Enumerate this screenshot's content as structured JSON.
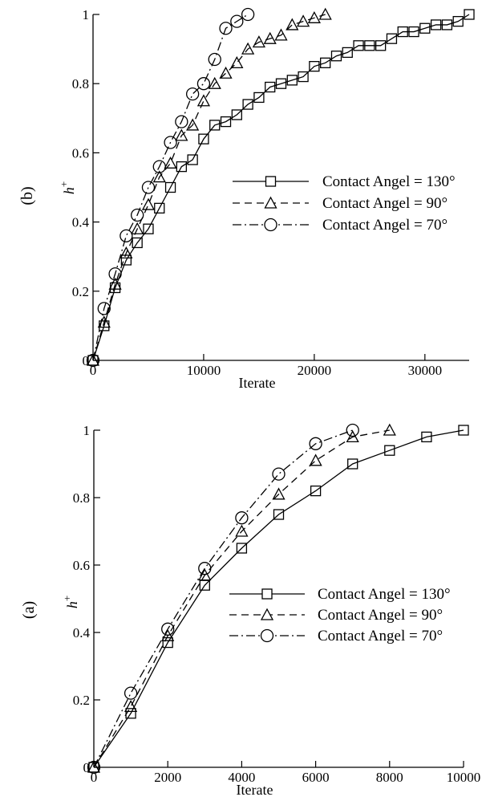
{
  "chart_data": [
    {
      "type": "line",
      "panel_label": "(b)",
      "xlabel": "Iterate",
      "ylabel_main": "h",
      "ylabel_sup": "+",
      "xlim": [
        0,
        34000
      ],
      "ylim": [
        0,
        1
      ],
      "xticks": [
        0,
        10000,
        20000,
        30000
      ],
      "xtick_labels": [
        "0",
        "10000",
        "20000",
        "30000"
      ],
      "yticks": [
        0,
        0.2,
        0.4,
        0.6,
        0.8,
        1
      ],
      "ytick_labels": [
        "0",
        "0.2",
        "0.4",
        "0.6",
        "0.8",
        "1"
      ],
      "grid": false,
      "legend_position": "center-right",
      "series": [
        {
          "name": "Contact Angel = 130°",
          "marker": "square",
          "dash": "solid",
          "x": [
            0,
            1000,
            2000,
            3000,
            4000,
            5000,
            6000,
            7000,
            8000,
            9000,
            10000,
            11000,
            12000,
            13000,
            14000,
            15000,
            16000,
            17000,
            18000,
            19000,
            20000,
            21000,
            22000,
            23000,
            24000,
            25000,
            26000,
            27000,
            28000,
            29000,
            30000,
            31000,
            32000,
            33000,
            34000
          ],
          "y": [
            0,
            0.1,
            0.21,
            0.29,
            0.34,
            0.38,
            0.44,
            0.5,
            0.56,
            0.58,
            0.64,
            0.68,
            0.69,
            0.71,
            0.74,
            0.76,
            0.79,
            0.8,
            0.81,
            0.82,
            0.85,
            0.86,
            0.88,
            0.89,
            0.91,
            0.91,
            0.91,
            0.93,
            0.95,
            0.95,
            0.96,
            0.97,
            0.97,
            0.98,
            1.0
          ]
        },
        {
          "name": "Contact Angel = 90°",
          "marker": "triangle",
          "dash": "dashed",
          "x": [
            0,
            1000,
            2000,
            3000,
            4000,
            5000,
            6000,
            7000,
            8000,
            9000,
            10000,
            11000,
            12000,
            13000,
            14000,
            15000,
            16000,
            17000,
            18000,
            19000,
            20000,
            21000
          ],
          "y": [
            0,
            0.11,
            0.22,
            0.31,
            0.38,
            0.45,
            0.53,
            0.57,
            0.65,
            0.68,
            0.75,
            0.8,
            0.83,
            0.86,
            0.9,
            0.92,
            0.93,
            0.94,
            0.97,
            0.98,
            0.99,
            1.0
          ]
        },
        {
          "name": "Contact Angel = 70°",
          "marker": "circle",
          "dash": "dashdot",
          "x": [
            0,
            1000,
            2000,
            3000,
            4000,
            5000,
            6000,
            7000,
            8000,
            9000,
            10000,
            11000,
            12000,
            13000,
            14000
          ],
          "y": [
            0,
            0.15,
            0.25,
            0.36,
            0.42,
            0.5,
            0.56,
            0.63,
            0.69,
            0.77,
            0.8,
            0.87,
            0.96,
            0.98,
            1.0
          ]
        }
      ]
    },
    {
      "type": "line",
      "panel_label": "(a)",
      "xlabel": "Iterate",
      "ylabel_main": "h",
      "ylabel_sup": "+",
      "xlim": [
        0,
        10000
      ],
      "ylim": [
        0,
        1
      ],
      "xticks": [
        0,
        2000,
        4000,
        6000,
        8000,
        10000
      ],
      "xtick_labels": [
        "0",
        "2000",
        "4000",
        "6000",
        "8000",
        "10000"
      ],
      "yticks": [
        0,
        0.2,
        0.4,
        0.6,
        0.8,
        1
      ],
      "ytick_labels": [
        "0",
        "0.2",
        "0.4",
        "0.6",
        "0.8",
        "1"
      ],
      "grid": false,
      "legend_position": "center-right",
      "series": [
        {
          "name": "Contact Angel = 130°",
          "marker": "square",
          "dash": "solid",
          "x": [
            0,
            1000,
            2000,
            3000,
            4000,
            5000,
            6000,
            7000,
            8000,
            9000,
            10000
          ],
          "y": [
            0,
            0.16,
            0.37,
            0.54,
            0.65,
            0.75,
            0.82,
            0.9,
            0.94,
            0.98,
            1.0
          ]
        },
        {
          "name": "Contact Angel = 90°",
          "marker": "triangle",
          "dash": "dashed",
          "x": [
            0,
            1000,
            2000,
            3000,
            4000,
            5000,
            6000,
            7000,
            8000
          ],
          "y": [
            0,
            0.18,
            0.39,
            0.57,
            0.7,
            0.81,
            0.91,
            0.98,
            1.0
          ]
        },
        {
          "name": "Contact Angel = 70°",
          "marker": "circle",
          "dash": "dashdot",
          "x": [
            0,
            1000,
            2000,
            3000,
            4000,
            5000,
            6000,
            7000
          ],
          "y": [
            0,
            0.22,
            0.41,
            0.59,
            0.74,
            0.87,
            0.96,
            1.0
          ]
        }
      ]
    }
  ]
}
